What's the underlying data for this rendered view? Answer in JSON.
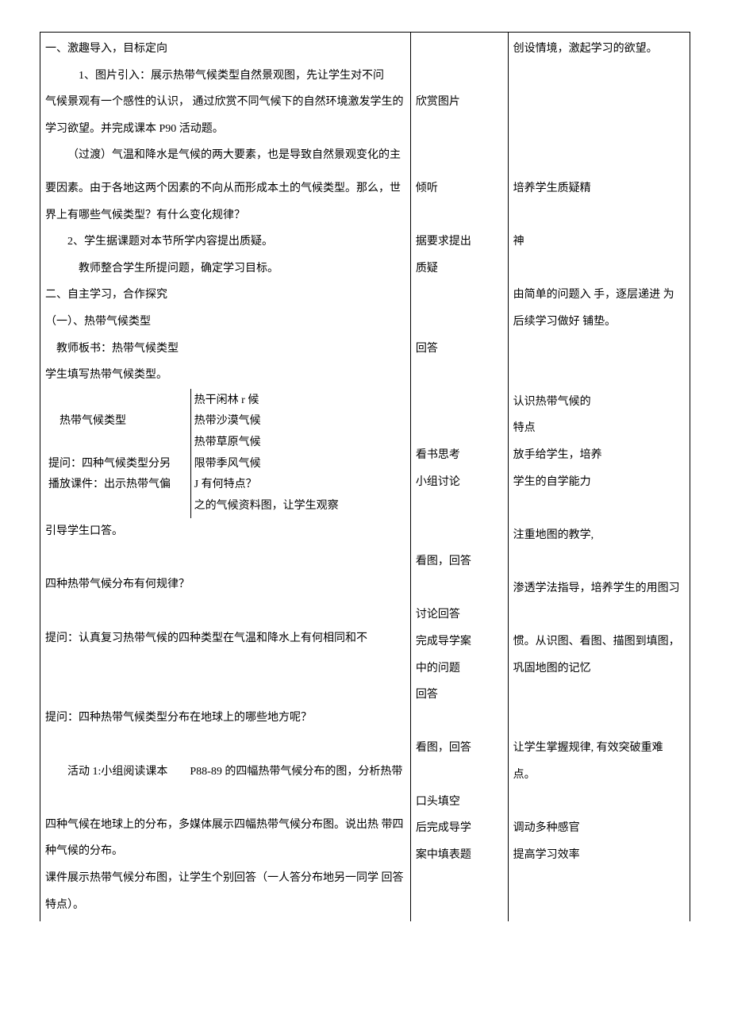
{
  "col1": {
    "section1_title": "一、激趣导入，目标定向",
    "p1": "1、图片引入：展示热带气候类型自然景观图，先让学生对不问",
    "p2": "气候景观有一个感性的认识，  通过欣赏不同气候下的自然环境激发学生的学习欲望。并完成课本 P90 活动题。",
    "p3": "（过渡）气温和降水是气候的两大要素，也是导致自然景观变化的主",
    "p4": "要因素。由于各地这两个因素的不向从而形成本土的气候类型。那么，世界上有哪些气候类型？有什么变化规律？",
    "p5": "2、学生据课题对本节所学内容提出质疑。",
    "p6": "教师整合学生所提问题，确定学习目标。",
    "section2_title": "二、自主学习，合作探究",
    "sub1": "（一）、热带气候类型",
    "teacher_board": "教师板书：热带气候类型",
    "student_fill": "学生填写热带气候类型。",
    "inner_left": "热带气候类型",
    "inner_r1": "热干闲林 r 候",
    "inner_r2": "热带沙漠气候",
    "inner_r3": "热带草原气候",
    "inner_r4": "限带季风气候",
    "inner_r5": "J 有何特点？",
    "inner_r6": "之的气候资料图，让学生观察",
    "q1_l1": "提问：四种气候类型分另",
    "q1_l2": "播放课件：出示热带气偏",
    "guide": "引导学生口答。",
    "q2": "四种热带气候分布有何规律？",
    "q3": "提问：认真复习热带气候的四种类型在气温和降水上有何相同和不",
    "q4": "提问：四种热带气候类型分布在地球上的哪些地方呢？",
    "activity1": "活动 1:小组阅读课本  P88-89 的四幅热带气候分布的图，分析热带",
    "q5": "四种气候在地球上的分布，多媒体展示四幅热带气候分布图。说出热 带四种气候的分布。",
    "last": "课件展示热带气候分布图，让学生个别回答（一人答分布地另一同学 回答特点）。"
  },
  "col2": {
    "t1": "欣赏图片",
    "t2": "倾听",
    "t3": "据要求提出",
    "t4": "质疑",
    "t5": "回答",
    "t6": "看书思考",
    "t7": "小组讨论",
    "t8": "看图，回答",
    "t9": "讨论回答",
    "t10": "完成导学案",
    "t11": "中的问题",
    "t12": "回答",
    "t13": "看图，回答",
    "t14": "口头填空",
    "t15": "后完成导学",
    "t16": "案中填表题"
  },
  "col3": {
    "t1": "创设情境，激起学习的欲望。",
    "t2": "培养学生质疑精",
    "t3": "神",
    "t4": "由简单的问题入 手，逐层递进 为后续学习做好 铺垫。",
    "t5": "认识热带气候的",
    "t6": "特点",
    "t7": "放手给学生，培养",
    "t8": "学生的自学能力",
    "t9": "注重地图的教学,",
    "t10": "渗透学法指导，培养学生的用图习",
    "t11": "惯。从识图、看图、描图到填图，巩固地图的记忆",
    "t12": "让学生掌握规律,  有效突破重难点。",
    "t13": "调动多种感官",
    "t14": "提高学习效率"
  }
}
